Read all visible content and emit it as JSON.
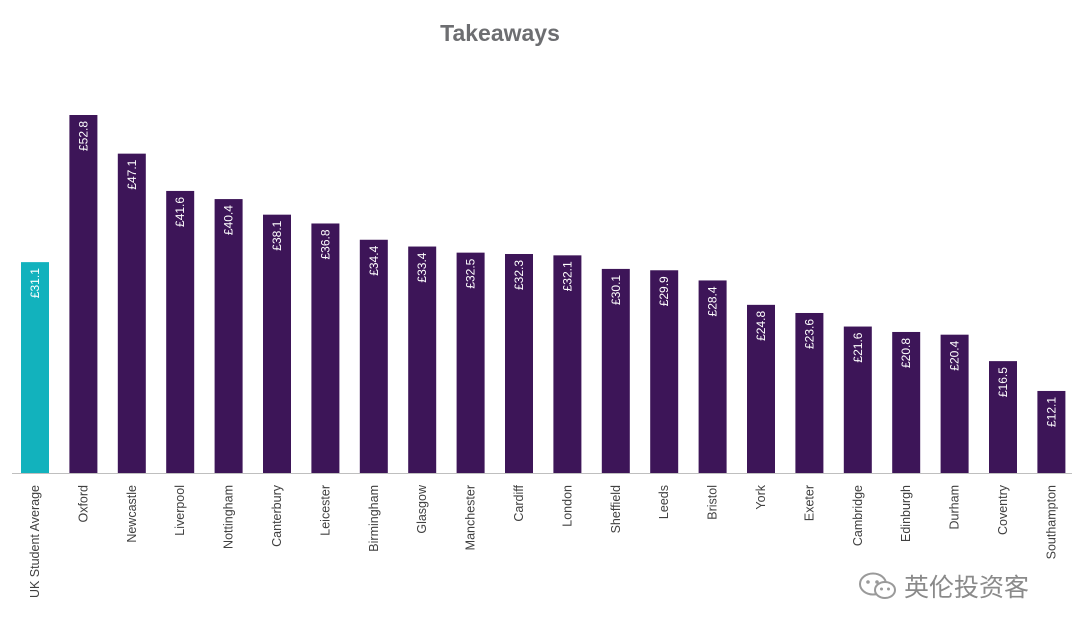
{
  "chart_data": {
    "type": "bar",
    "title": "Takeaways",
    "xlabel": "",
    "ylabel": "",
    "ylim": [
      0,
      55
    ],
    "value_prefix": "£",
    "categories": [
      "UK Student Average",
      "Oxford",
      "Newcastle",
      "Liverpool",
      "Nottingham",
      "Canterbury",
      "Leicester",
      "Birmingham",
      "Glasgow",
      "Manchester",
      "Cardiff",
      "London",
      "Sheffield",
      "Leeds",
      "Bristol",
      "York",
      "Exeter",
      "Cambridge",
      "Edinburgh",
      "Durham",
      "Coventry",
      "Southampton"
    ],
    "values": [
      31.1,
      52.8,
      47.1,
      41.6,
      40.4,
      38.1,
      36.8,
      34.4,
      33.4,
      32.5,
      32.3,
      32.1,
      30.1,
      29.9,
      28.4,
      24.8,
      23.6,
      21.6,
      20.8,
      20.4,
      16.5,
      12.1
    ],
    "highlight_index": 0,
    "colors": {
      "highlight": "#12b2bd",
      "bar": "#3d1558",
      "axis": "#bfbfbf",
      "tick_label": "#404040",
      "data_label": "#ffffff",
      "title": "#6d6e71"
    }
  },
  "watermark": {
    "text": "英伦投资客",
    "icon": "wechat-icon"
  }
}
